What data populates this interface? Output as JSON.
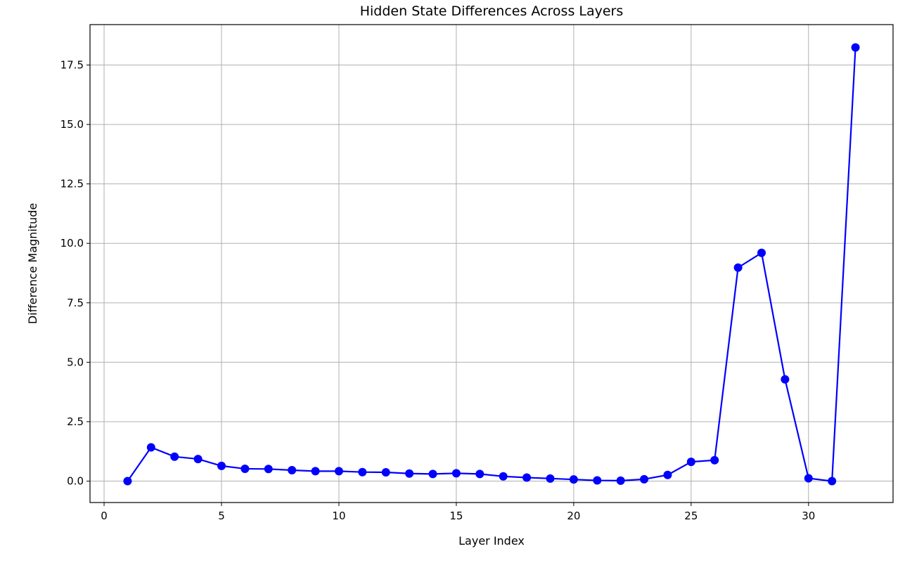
{
  "chart_data": {
    "type": "line",
    "title": "Hidden State Differences Across Layers",
    "xlabel": "Layer Index",
    "ylabel": "Difference Magnitude",
    "xlim": [
      -0.6,
      33.6
    ],
    "ylim": [
      -0.9,
      19.2
    ],
    "xticks": [
      0,
      5,
      10,
      15,
      20,
      25,
      30
    ],
    "xtick_labels": [
      "0",
      "5",
      "10",
      "15",
      "20",
      "25",
      "30"
    ],
    "yticks": [
      0.0,
      2.5,
      5.0,
      7.5,
      10.0,
      12.5,
      15.0,
      17.5
    ],
    "ytick_labels": [
      "0.0",
      "2.5",
      "5.0",
      "7.5",
      "10.0",
      "12.5",
      "15.0",
      "17.5"
    ],
    "grid": true,
    "series": [
      {
        "color": "#0000ff",
        "marker": "circle",
        "x": [
          1,
          2,
          3,
          4,
          5,
          6,
          7,
          8,
          9,
          10,
          11,
          12,
          13,
          14,
          15,
          16,
          17,
          18,
          19,
          20,
          21,
          22,
          23,
          24,
          25,
          26,
          27,
          28,
          29,
          30,
          31,
          32
        ],
        "y": [
          0.0,
          1.42,
          1.03,
          0.93,
          0.64,
          0.52,
          0.51,
          0.46,
          0.42,
          0.42,
          0.38,
          0.37,
          0.32,
          0.3,
          0.33,
          0.3,
          0.2,
          0.15,
          0.11,
          0.07,
          0.03,
          0.02,
          0.08,
          0.26,
          0.81,
          0.88,
          8.98,
          9.6,
          4.28,
          0.12,
          0.0,
          18.24
        ]
      }
    ]
  }
}
